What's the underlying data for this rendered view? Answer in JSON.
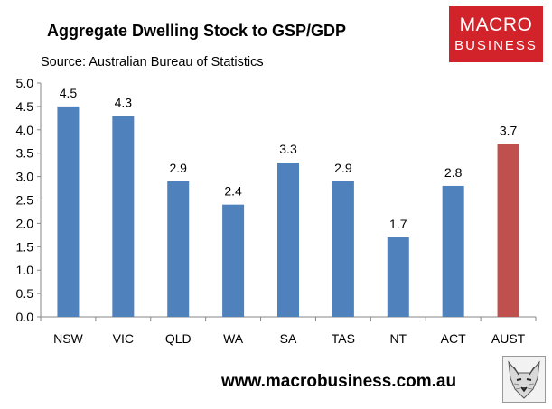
{
  "header": {
    "title": "Aggregate Dwelling Stock to GSP/GDP",
    "source": "Source: Australian Bureau of Statistics"
  },
  "logo": {
    "line1": "MACRO",
    "line2": "BUSINESS",
    "color": "#d2232a"
  },
  "footer": {
    "url": "www.macrobusiness.com.au"
  },
  "chart_data": {
    "type": "bar",
    "title": "Aggregate Dwelling Stock to GSP/GDP",
    "xlabel": "",
    "ylabel": "",
    "categories": [
      "NSW",
      "VIC",
      "QLD",
      "WA",
      "SA",
      "TAS",
      "NT",
      "ACT",
      "AUST"
    ],
    "values": [
      4.5,
      4.3,
      2.9,
      2.4,
      3.3,
      2.9,
      1.7,
      2.8,
      3.7
    ],
    "data_labels": [
      "4.5",
      "4.3",
      "2.9",
      "2.4",
      "3.3",
      "2.9",
      "1.7",
      "2.8",
      "3.7"
    ],
    "ylim": [
      0,
      5
    ],
    "yticks": [
      "0.0",
      "0.5",
      "1.0",
      "1.5",
      "2.0",
      "2.5",
      "3.0",
      "3.5",
      "4.0",
      "4.5",
      "5.0"
    ],
    "bar_colors": [
      "#4f81bd",
      "#4f81bd",
      "#4f81bd",
      "#4f81bd",
      "#4f81bd",
      "#4f81bd",
      "#4f81bd",
      "#4f81bd",
      "#c0504d"
    ],
    "grid": false,
    "legend": "none"
  }
}
